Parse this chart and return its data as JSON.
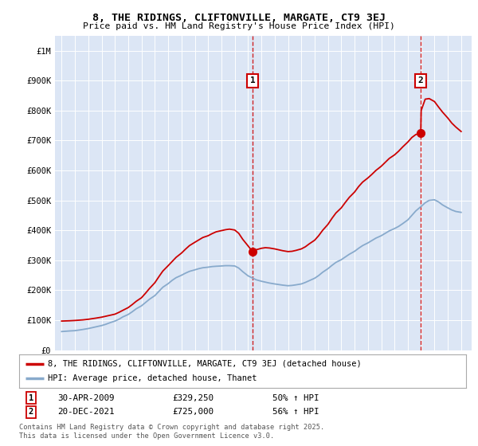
{
  "title": "8, THE RIDINGS, CLIFTONVILLE, MARGATE, CT9 3EJ",
  "subtitle": "Price paid vs. HM Land Registry's House Price Index (HPI)",
  "background_color": "#ffffff",
  "plot_bg_color": "#dce6f5",
  "red_color": "#cc0000",
  "blue_color": "#88aacc",
  "ylim": [
    0,
    1050000
  ],
  "yticks": [
    0,
    100000,
    200000,
    300000,
    400000,
    500000,
    600000,
    700000,
    800000,
    900000,
    1000000
  ],
  "ytick_labels": [
    "£0",
    "£100K",
    "£200K",
    "£300K",
    "£400K",
    "£500K",
    "£600K",
    "£700K",
    "£800K",
    "£900K",
    "£1M"
  ],
  "xlim_start": 1994.5,
  "xlim_end": 2025.8,
  "marker1_x": 2009.33,
  "marker1_label": "1",
  "marker2_x": 2021.97,
  "marker2_label": "2",
  "marker1_y": 329250,
  "marker2_y": 725000,
  "legend_line1": "8, THE RIDINGS, CLIFTONVILLE, MARGATE, CT9 3EJ (detached house)",
  "legend_line2": "HPI: Average price, detached house, Thanet",
  "annotation1_date": "30-APR-2009",
  "annotation1_price": "£329,250",
  "annotation1_hpi": "50% ↑ HPI",
  "annotation2_date": "20-DEC-2021",
  "annotation2_price": "£725,000",
  "annotation2_hpi": "56% ↑ HPI",
  "footer": "Contains HM Land Registry data © Crown copyright and database right 2025.\nThis data is licensed under the Open Government Licence v3.0.",
  "red_x": [
    1995.0,
    1995.3,
    1995.6,
    1996.0,
    1996.3,
    1996.6,
    1997.0,
    1997.3,
    1997.6,
    1998.0,
    1998.3,
    1998.6,
    1999.0,
    1999.3,
    1999.6,
    2000.0,
    2000.3,
    2000.6,
    2001.0,
    2001.3,
    2001.6,
    2002.0,
    2002.3,
    2002.6,
    2003.0,
    2003.3,
    2003.6,
    2004.0,
    2004.3,
    2004.6,
    2005.0,
    2005.3,
    2005.6,
    2006.0,
    2006.3,
    2006.6,
    2007.0,
    2007.3,
    2007.6,
    2008.0,
    2008.3,
    2008.6,
    2009.0,
    2009.33,
    2009.6,
    2010.0,
    2010.3,
    2010.6,
    2011.0,
    2011.3,
    2011.6,
    2012.0,
    2012.3,
    2012.6,
    2013.0,
    2013.3,
    2013.6,
    2014.0,
    2014.3,
    2014.6,
    2015.0,
    2015.3,
    2015.6,
    2016.0,
    2016.3,
    2016.6,
    2017.0,
    2017.3,
    2017.6,
    2018.0,
    2018.3,
    2018.6,
    2019.0,
    2019.3,
    2019.6,
    2020.0,
    2020.3,
    2020.6,
    2021.0,
    2021.3,
    2021.6,
    2021.97,
    2022.0,
    2022.3,
    2022.6,
    2023.0,
    2023.3,
    2023.6,
    2024.0,
    2024.3,
    2024.6,
    2025.0
  ],
  "red_y": [
    97000,
    97500,
    98000,
    99000,
    100000,
    101000,
    103000,
    105000,
    107000,
    110000,
    113000,
    116000,
    120000,
    126000,
    133000,
    142000,
    152000,
    163000,
    175000,
    190000,
    206000,
    225000,
    245000,
    264000,
    282000,
    296000,
    310000,
    324000,
    337000,
    349000,
    360000,
    368000,
    376000,
    382000,
    389000,
    395000,
    399000,
    402000,
    404000,
    401000,
    390000,
    370000,
    348000,
    329250,
    335000,
    340000,
    342000,
    341000,
    338000,
    335000,
    332000,
    329000,
    330000,
    333000,
    338000,
    345000,
    355000,
    367000,
    382000,
    400000,
    420000,
    440000,
    458000,
    475000,
    493000,
    510000,
    528000,
    546000,
    561000,
    575000,
    587000,
    600000,
    614000,
    627000,
    640000,
    652000,
    664000,
    678000,
    695000,
    710000,
    720000,
    725000,
    800000,
    838000,
    840000,
    830000,
    812000,
    795000,
    775000,
    758000,
    745000,
    730000
  ],
  "blue_x": [
    1995.0,
    1995.3,
    1995.6,
    1996.0,
    1996.3,
    1996.6,
    1997.0,
    1997.3,
    1997.6,
    1998.0,
    1998.3,
    1998.6,
    1999.0,
    1999.3,
    1999.6,
    2000.0,
    2000.3,
    2000.6,
    2001.0,
    2001.3,
    2001.6,
    2002.0,
    2002.3,
    2002.6,
    2003.0,
    2003.3,
    2003.6,
    2004.0,
    2004.3,
    2004.6,
    2005.0,
    2005.3,
    2005.6,
    2006.0,
    2006.3,
    2006.6,
    2007.0,
    2007.3,
    2007.6,
    2008.0,
    2008.3,
    2008.6,
    2009.0,
    2009.6,
    2010.0,
    2010.3,
    2010.6,
    2011.0,
    2011.3,
    2011.6,
    2012.0,
    2012.3,
    2012.6,
    2013.0,
    2013.3,
    2013.6,
    2014.0,
    2014.3,
    2014.6,
    2015.0,
    2015.3,
    2015.6,
    2016.0,
    2016.3,
    2016.6,
    2017.0,
    2017.3,
    2017.6,
    2018.0,
    2018.3,
    2018.6,
    2019.0,
    2019.3,
    2019.6,
    2020.0,
    2020.3,
    2020.6,
    2021.0,
    2021.3,
    2021.6,
    2022.0,
    2022.3,
    2022.6,
    2023.0,
    2023.3,
    2023.6,
    2024.0,
    2024.3,
    2024.6,
    2025.0
  ],
  "blue_y": [
    62000,
    63000,
    64000,
    65000,
    67000,
    69000,
    72000,
    75000,
    78000,
    82000,
    86000,
    91000,
    97000,
    103000,
    111000,
    119000,
    128000,
    138000,
    148000,
    159000,
    170000,
    182000,
    196000,
    210000,
    222000,
    233000,
    242000,
    250000,
    257000,
    263000,
    268000,
    272000,
    275000,
    277000,
    279000,
    280000,
    281000,
    282000,
    282000,
    281000,
    274000,
    262000,
    248000,
    235000,
    230000,
    227000,
    224000,
    221000,
    219000,
    217000,
    215000,
    216000,
    218000,
    221000,
    226000,
    232000,
    240000,
    249000,
    260000,
    272000,
    283000,
    293000,
    302000,
    311000,
    320000,
    330000,
    340000,
    349000,
    358000,
    366000,
    374000,
    382000,
    390000,
    398000,
    406000,
    413000,
    422000,
    435000,
    450000,
    465000,
    480000,
    492000,
    500000,
    502000,
    495000,
    485000,
    475000,
    468000,
    463000,
    460000
  ]
}
